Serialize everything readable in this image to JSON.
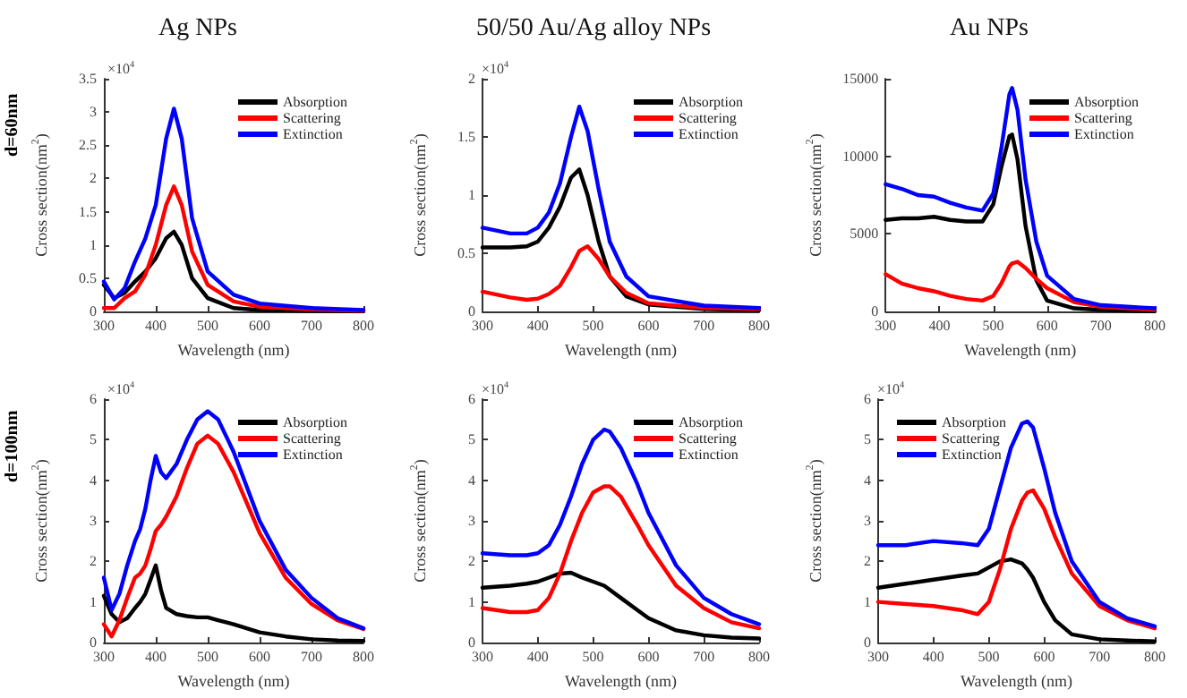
{
  "chart_data": [
    {
      "type": "line",
      "title": "Ag NPs",
      "xlabel": "Wavelength (nm)",
      "ylabel": "Cross section(nm$^{2}$)",
      "annotations": [
        "d=60nm",
        "×10$^{4}$"
      ],
      "x": [
        300,
        320,
        340,
        360,
        380,
        400,
        420,
        435,
        450,
        470,
        500,
        550,
        600,
        700,
        800
      ],
      "series": [
        {
          "name": "Absorption",
          "color": "#000000",
          "values": [
            0.4,
            0.2,
            0.28,
            0.45,
            0.6,
            0.8,
            1.1,
            1.2,
            1.0,
            0.5,
            0.2,
            0.05,
            0.02,
            0.01,
            0
          ]
        },
        {
          "name": "Scattering",
          "color": "#ff0000",
          "values": [
            0.05,
            0.05,
            0.2,
            0.3,
            0.55,
            1.0,
            1.6,
            1.88,
            1.6,
            0.9,
            0.4,
            0.15,
            0.07,
            0.03,
            0.01
          ]
        },
        {
          "name": "Extinction",
          "color": "#0000ff",
          "values": [
            0.45,
            0.18,
            0.35,
            0.75,
            1.1,
            1.6,
            2.6,
            3.05,
            2.6,
            1.4,
            0.6,
            0.25,
            0.12,
            0.05,
            0.02
          ]
        }
      ],
      "xlim": [
        300,
        800
      ],
      "xticks": [
        300,
        400,
        500,
        600,
        700,
        800
      ],
      "ylim": [
        0,
        3.5
      ],
      "yticks": [
        0,
        0.5,
        1,
        1.5,
        2,
        2.5,
        3,
        3.5
      ],
      "legend": "top right",
      "marker": "none",
      "line_style": "solid",
      "grid": false
    },
    {
      "type": "line",
      "title": "50/50 Au/Ag alloy NPs",
      "xlabel": "Wavelength (nm)",
      "ylabel": "Cross section(nm$^{2}$)",
      "annotations": [
        "×10$^{4}$"
      ],
      "x": [
        300,
        350,
        380,
        400,
        420,
        440,
        460,
        475,
        490,
        510,
        530,
        560,
        600,
        700,
        800
      ],
      "series": [
        {
          "name": "Absorption",
          "color": "#000000",
          "values": [
            0.55,
            0.55,
            0.56,
            0.6,
            0.72,
            0.9,
            1.15,
            1.22,
            1.0,
            0.6,
            0.3,
            0.13,
            0.06,
            0.02,
            0.01
          ]
        },
        {
          "name": "Scattering",
          "color": "#ff0000",
          "values": [
            0.17,
            0.12,
            0.1,
            0.11,
            0.15,
            0.22,
            0.38,
            0.52,
            0.56,
            0.45,
            0.3,
            0.16,
            0.07,
            0.03,
            0.02
          ]
        },
        {
          "name": "Extinction",
          "color": "#0000ff",
          "values": [
            0.72,
            0.67,
            0.67,
            0.72,
            0.85,
            1.1,
            1.5,
            1.76,
            1.55,
            1.05,
            0.6,
            0.3,
            0.13,
            0.05,
            0.03
          ]
        }
      ],
      "xlim": [
        300,
        800
      ],
      "xticks": [
        300,
        400,
        500,
        600,
        700,
        800
      ],
      "ylim": [
        0,
        2
      ],
      "yticks": [
        0,
        0.5,
        1,
        1.5,
        2
      ],
      "legend": "top right",
      "marker": "none",
      "line_style": "solid",
      "grid": false
    },
    {
      "type": "line",
      "title": "Au NPs",
      "xlabel": "Wavelength (nm)",
      "ylabel": "Cross section(nm$^{2}$)",
      "x": [
        300,
        330,
        360,
        390,
        420,
        450,
        480,
        500,
        515,
        530,
        535,
        545,
        560,
        580,
        600,
        650,
        700,
        800
      ],
      "series": [
        {
          "name": "Absorption",
          "color": "#000000",
          "values": [
            5900,
            6000,
            6000,
            6100,
            5900,
            5800,
            5800,
            6900,
            9300,
            11300,
            11400,
            9800,
            5500,
            2000,
            700,
            200,
            100,
            0
          ]
        },
        {
          "name": "Scattering",
          "color": "#ff0000",
          "values": [
            2400,
            1800,
            1500,
            1300,
            1000,
            800,
            700,
            1000,
            1800,
            2900,
            3100,
            3200,
            2800,
            2100,
            1500,
            600,
            300,
            100
          ]
        },
        {
          "name": "Extinction",
          "color": "#0000ff",
          "values": [
            8200,
            7900,
            7500,
            7400,
            7000,
            6700,
            6500,
            7600,
            10500,
            14000,
            14400,
            13000,
            8500,
            4500,
            2300,
            800,
            400,
            200
          ]
        }
      ],
      "xlim": [
        300,
        800
      ],
      "xticks": [
        300,
        400,
        500,
        600,
        700,
        800
      ],
      "ylim": [
        0,
        15000
      ],
      "yticks": [
        0,
        5000,
        10000,
        15000
      ],
      "legend": "top right",
      "marker": "none",
      "line_style": "solid",
      "grid": false
    },
    {
      "type": "line",
      "xlabel": "Wavelength (nm)",
      "ylabel": "Cross section(nm$^{2}$)",
      "annotations": [
        "d=100nm",
        "×10$^{4}$"
      ],
      "x": [
        300,
        315,
        330,
        345,
        360,
        370,
        380,
        390,
        400,
        410,
        420,
        440,
        460,
        480,
        500,
        520,
        550,
        600,
        650,
        700,
        750,
        800
      ],
      "series": [
        {
          "name": "Absorption",
          "color": "#000000",
          "values": [
            1.15,
            0.7,
            0.5,
            0.6,
            0.85,
            1.0,
            1.2,
            1.55,
            1.9,
            1.3,
            0.85,
            0.7,
            0.65,
            0.62,
            0.62,
            0.55,
            0.45,
            0.25,
            0.15,
            0.08,
            0.05,
            0.04
          ]
        },
        {
          "name": "Scattering",
          "color": "#ff0000",
          "values": [
            0.45,
            0.15,
            0.55,
            1.1,
            1.6,
            1.7,
            1.9,
            2.3,
            2.75,
            2.9,
            3.1,
            3.6,
            4.3,
            4.9,
            5.1,
            4.9,
            4.2,
            2.7,
            1.6,
            0.95,
            0.55,
            0.33
          ]
        },
        {
          "name": "Extinction",
          "color": "#0000ff",
          "values": [
            1.6,
            0.8,
            1.2,
            1.9,
            2.5,
            2.8,
            3.3,
            4.0,
            4.6,
            4.2,
            4.05,
            4.4,
            5.0,
            5.5,
            5.7,
            5.5,
            4.7,
            3.0,
            1.8,
            1.1,
            0.6,
            0.35
          ]
        }
      ],
      "xlim": [
        300,
        800
      ],
      "xticks": [
        300,
        400,
        500,
        600,
        700,
        800
      ],
      "ylim": [
        0,
        6
      ],
      "yticks": [
        0,
        1,
        2,
        3,
        4,
        5,
        6
      ],
      "legend": "top right",
      "marker": "none",
      "line_style": "solid",
      "grid": false
    },
    {
      "type": "line",
      "xlabel": "Wavelength (nm)",
      "ylabel": "Cross section(nm$^{2}$)",
      "annotations": [
        "×10$^{4}$"
      ],
      "x": [
        300,
        350,
        380,
        400,
        420,
        440,
        460,
        480,
        500,
        520,
        530,
        550,
        580,
        600,
        650,
        700,
        750,
        800
      ],
      "series": [
        {
          "name": "Absorption",
          "color": "#000000",
          "values": [
            1.35,
            1.4,
            1.45,
            1.5,
            1.6,
            1.7,
            1.72,
            1.6,
            1.5,
            1.4,
            1.3,
            1.1,
            0.8,
            0.6,
            0.3,
            0.18,
            0.12,
            0.1
          ]
        },
        {
          "name": "Scattering",
          "color": "#ff0000",
          "values": [
            0.85,
            0.75,
            0.75,
            0.8,
            1.1,
            1.7,
            2.5,
            3.2,
            3.7,
            3.85,
            3.85,
            3.6,
            2.9,
            2.4,
            1.4,
            0.85,
            0.5,
            0.35
          ]
        },
        {
          "name": "Extinction",
          "color": "#0000ff",
          "values": [
            2.2,
            2.15,
            2.15,
            2.2,
            2.4,
            2.9,
            3.6,
            4.4,
            5.0,
            5.25,
            5.2,
            4.8,
            3.9,
            3.2,
            1.9,
            1.1,
            0.7,
            0.45
          ]
        }
      ],
      "xlim": [
        300,
        800
      ],
      "xticks": [
        300,
        400,
        500,
        600,
        700,
        800
      ],
      "ylim": [
        0,
        6
      ],
      "yticks": [
        0,
        1,
        2,
        3,
        4,
        5,
        6
      ],
      "legend": "top right",
      "marker": "none",
      "line_style": "solid",
      "grid": false
    },
    {
      "type": "line",
      "xlabel": "Wavelength (nm)",
      "ylabel": "Cross section(nm$^{2}$)",
      "annotations": [
        "×10$^{4}$"
      ],
      "x": [
        300,
        350,
        400,
        450,
        480,
        500,
        520,
        540,
        560,
        570,
        580,
        600,
        620,
        650,
        700,
        750,
        800
      ],
      "series": [
        {
          "name": "Absorption",
          "color": "#000000",
          "values": [
            1.35,
            1.45,
            1.55,
            1.65,
            1.7,
            1.85,
            2.0,
            2.05,
            1.95,
            1.8,
            1.6,
            1.0,
            0.55,
            0.2,
            0.08,
            0.05,
            0.03
          ]
        },
        {
          "name": "Scattering",
          "color": "#ff0000",
          "values": [
            1.0,
            0.95,
            0.9,
            0.8,
            0.7,
            1.0,
            1.8,
            2.8,
            3.5,
            3.7,
            3.75,
            3.3,
            2.6,
            1.7,
            0.9,
            0.55,
            0.35
          ]
        },
        {
          "name": "Extinction",
          "color": "#0000ff",
          "values": [
            2.4,
            2.4,
            2.5,
            2.45,
            2.4,
            2.8,
            3.8,
            4.8,
            5.4,
            5.45,
            5.3,
            4.3,
            3.2,
            2.0,
            1.0,
            0.6,
            0.4
          ]
        }
      ],
      "xlim": [
        300,
        800
      ],
      "xticks": [
        300,
        400,
        500,
        600,
        700,
        800
      ],
      "ylim": [
        0,
        6
      ],
      "yticks": [
        0,
        1,
        2,
        3,
        4,
        5,
        6
      ],
      "legend": "top left",
      "marker": "none",
      "line_style": "solid",
      "grid": false
    }
  ]
}
